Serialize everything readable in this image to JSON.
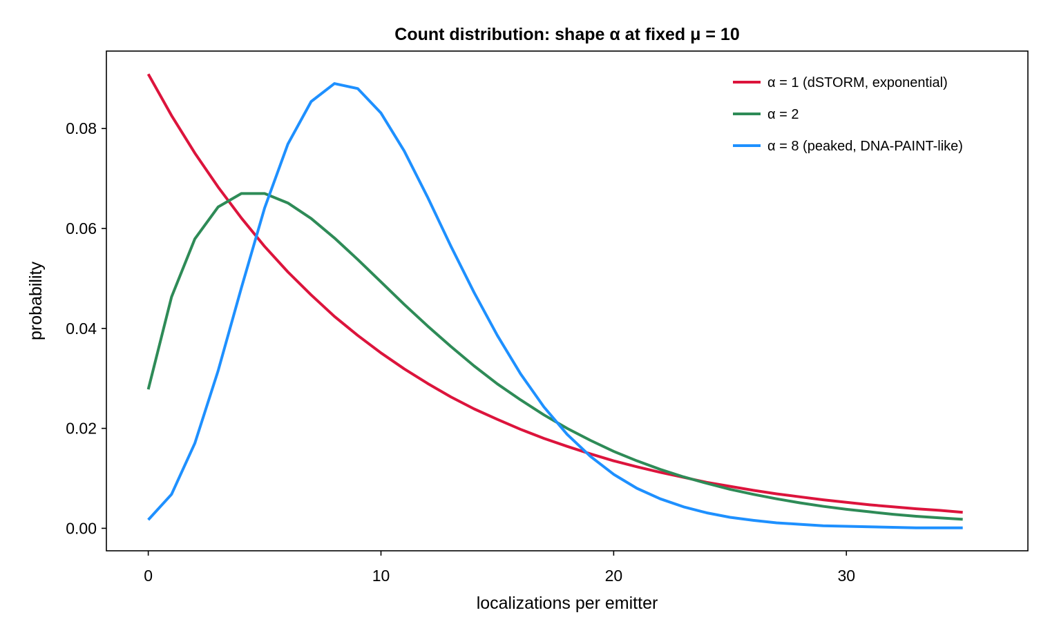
{
  "chart_data": {
    "type": "line",
    "title": "Count distribution: shape α at fixed μ = 10",
    "xlabel": "localizations per emitter",
    "ylabel": "probability",
    "xlim": [
      -1.8,
      37.8
    ],
    "ylim": [
      -0.0045,
      0.0955
    ],
    "xticks": [
      0,
      10,
      20,
      30
    ],
    "xtick_labels": [
      "0",
      "10",
      "20",
      "30"
    ],
    "yticks": [
      0.0,
      0.02,
      0.04,
      0.06,
      0.08
    ],
    "ytick_labels": [
      "0.00",
      "0.02",
      "0.04",
      "0.06",
      "0.08"
    ],
    "grid": false,
    "legend_position": "top-right",
    "x": [
      0,
      1,
      2,
      3,
      4,
      5,
      6,
      7,
      8,
      9,
      10,
      11,
      12,
      13,
      14,
      15,
      16,
      17,
      18,
      19,
      20,
      21,
      22,
      23,
      24,
      25,
      26,
      27,
      28,
      29,
      30,
      31,
      32,
      33,
      34,
      35
    ],
    "series": [
      {
        "name": "α = 1  (dSTORM, exponential)",
        "color": "#dc143c",
        "values": [
          0.0909,
          0.0826,
          0.0751,
          0.0683,
          0.0621,
          0.0564,
          0.0513,
          0.0467,
          0.0424,
          0.0386,
          0.0351,
          0.0319,
          0.029,
          0.0263,
          0.0239,
          0.0218,
          0.0198,
          0.018,
          0.0164,
          0.0149,
          0.0135,
          0.0123,
          0.0112,
          0.0102,
          0.0092,
          0.0084,
          0.0076,
          0.0069,
          0.0063,
          0.0057,
          0.0052,
          0.0047,
          0.0043,
          0.0039,
          0.0036,
          0.0032
        ]
      },
      {
        "name": "α = 2",
        "color": "#2e8b57",
        "values": [
          0.0278,
          0.0463,
          0.0579,
          0.0643,
          0.067,
          0.067,
          0.0651,
          0.062,
          0.0581,
          0.0538,
          0.0493,
          0.0448,
          0.0405,
          0.0364,
          0.0325,
          0.0289,
          0.0257,
          0.0227,
          0.02,
          0.0176,
          0.0154,
          0.0135,
          0.0118,
          0.0103,
          0.009,
          0.0078,
          0.0068,
          0.0059,
          0.0051,
          0.0044,
          0.0038,
          0.0033,
          0.0028,
          0.0024,
          0.0021,
          0.0018
        ]
      },
      {
        "name": "α = 8  (peaked, DNA-PAINT-like)",
        "color": "#1e90ff",
        "values": [
          0.0017,
          0.0068,
          0.017,
          0.0315,
          0.0481,
          0.0641,
          0.0769,
          0.0854,
          0.089,
          0.088,
          0.0831,
          0.0755,
          0.0663,
          0.0565,
          0.0472,
          0.0386,
          0.0309,
          0.0243,
          0.0188,
          0.0144,
          0.0108,
          0.008,
          0.0059,
          0.0043,
          0.0031,
          0.0022,
          0.0016,
          0.0011,
          0.0008,
          0.0005,
          0.0004,
          0.0003,
          0.0002,
          0.0001,
          0.0001,
          0.0001
        ]
      }
    ]
  }
}
